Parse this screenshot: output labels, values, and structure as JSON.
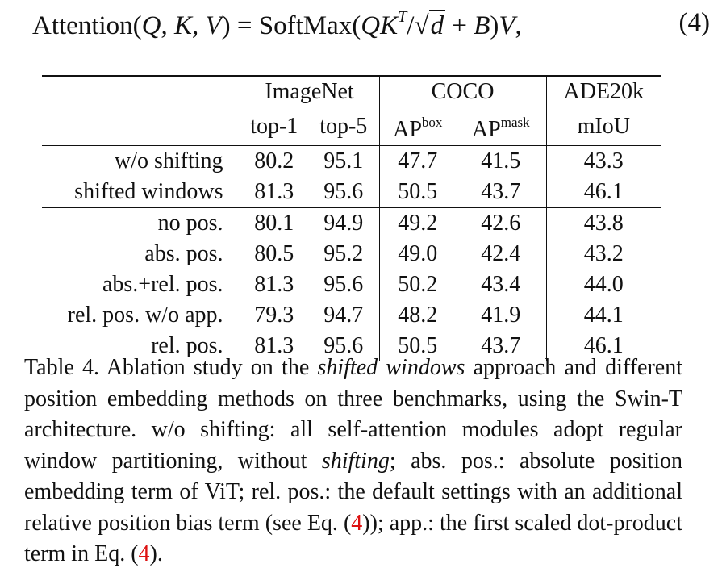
{
  "equation": {
    "lhs_func": "Attention",
    "lhs_args": "Q, K, V",
    "equals": "=",
    "rhs_func": "SoftMax",
    "q": "Q",
    "k": "K",
    "k_sup": "T",
    "slash": "/",
    "radical": "√",
    "d": "d",
    "plus": "+",
    "bias": "B",
    "v": "V",
    "trail": ",",
    "number": "(4)"
  },
  "table": {
    "header_groups": [
      "ImageNet",
      "COCO",
      "ADE20k"
    ],
    "subheaders": {
      "top1": "top-1",
      "top5": "top-5",
      "ap_box_base": "AP",
      "ap_box_sup": "box",
      "ap_mask_base": "AP",
      "ap_mask_sup": "mask",
      "miou": "mIoU"
    },
    "rows": [
      {
        "label": "w/o shifting",
        "values": [
          "80.2",
          "95.1",
          "47.7",
          "41.5",
          "43.3"
        ],
        "bold": false
      },
      {
        "label": "shifted windows",
        "values": [
          "81.3",
          "95.6",
          "50.5",
          "43.7",
          "46.1"
        ],
        "bold": true
      },
      {
        "label": "no pos.",
        "values": [
          "80.1",
          "94.9",
          "49.2",
          "42.6",
          "43.8"
        ],
        "bold": false
      },
      {
        "label": "abs. pos.",
        "values": [
          "80.5",
          "95.2",
          "49.0",
          "42.4",
          "43.2"
        ],
        "bold": false
      },
      {
        "label": "abs.+rel. pos.",
        "values": [
          "81.3",
          "95.6",
          "50.2",
          "43.4",
          "44.0"
        ],
        "bold": false
      },
      {
        "label": "rel. pos. w/o app.",
        "values": [
          "79.3",
          "94.7",
          "48.2",
          "41.9",
          "44.1"
        ],
        "bold": false
      },
      {
        "label": "rel. pos.",
        "values": [
          "81.3",
          "95.6",
          "50.5",
          "43.7",
          "46.1"
        ],
        "bold": true
      }
    ]
  },
  "caption": {
    "t1": "Table 4. Ablation study on the ",
    "em1": "shifted windows",
    "t2": " approach and different position embedding methods on three benchmarks, using the Swin-T architecture. w/o shifting: all self-attention modules adopt regular window partitioning, without ",
    "em2": "shifting",
    "t3": "; abs. pos.: absolute position embedding term of ViT; rel. pos.: the default settings with an additional relative position bias term (see Eq. (",
    "ref1": "4",
    "t4": ")); app.: the first scaled dot-product term in Eq. (",
    "ref2": "4",
    "t5": ")."
  }
}
